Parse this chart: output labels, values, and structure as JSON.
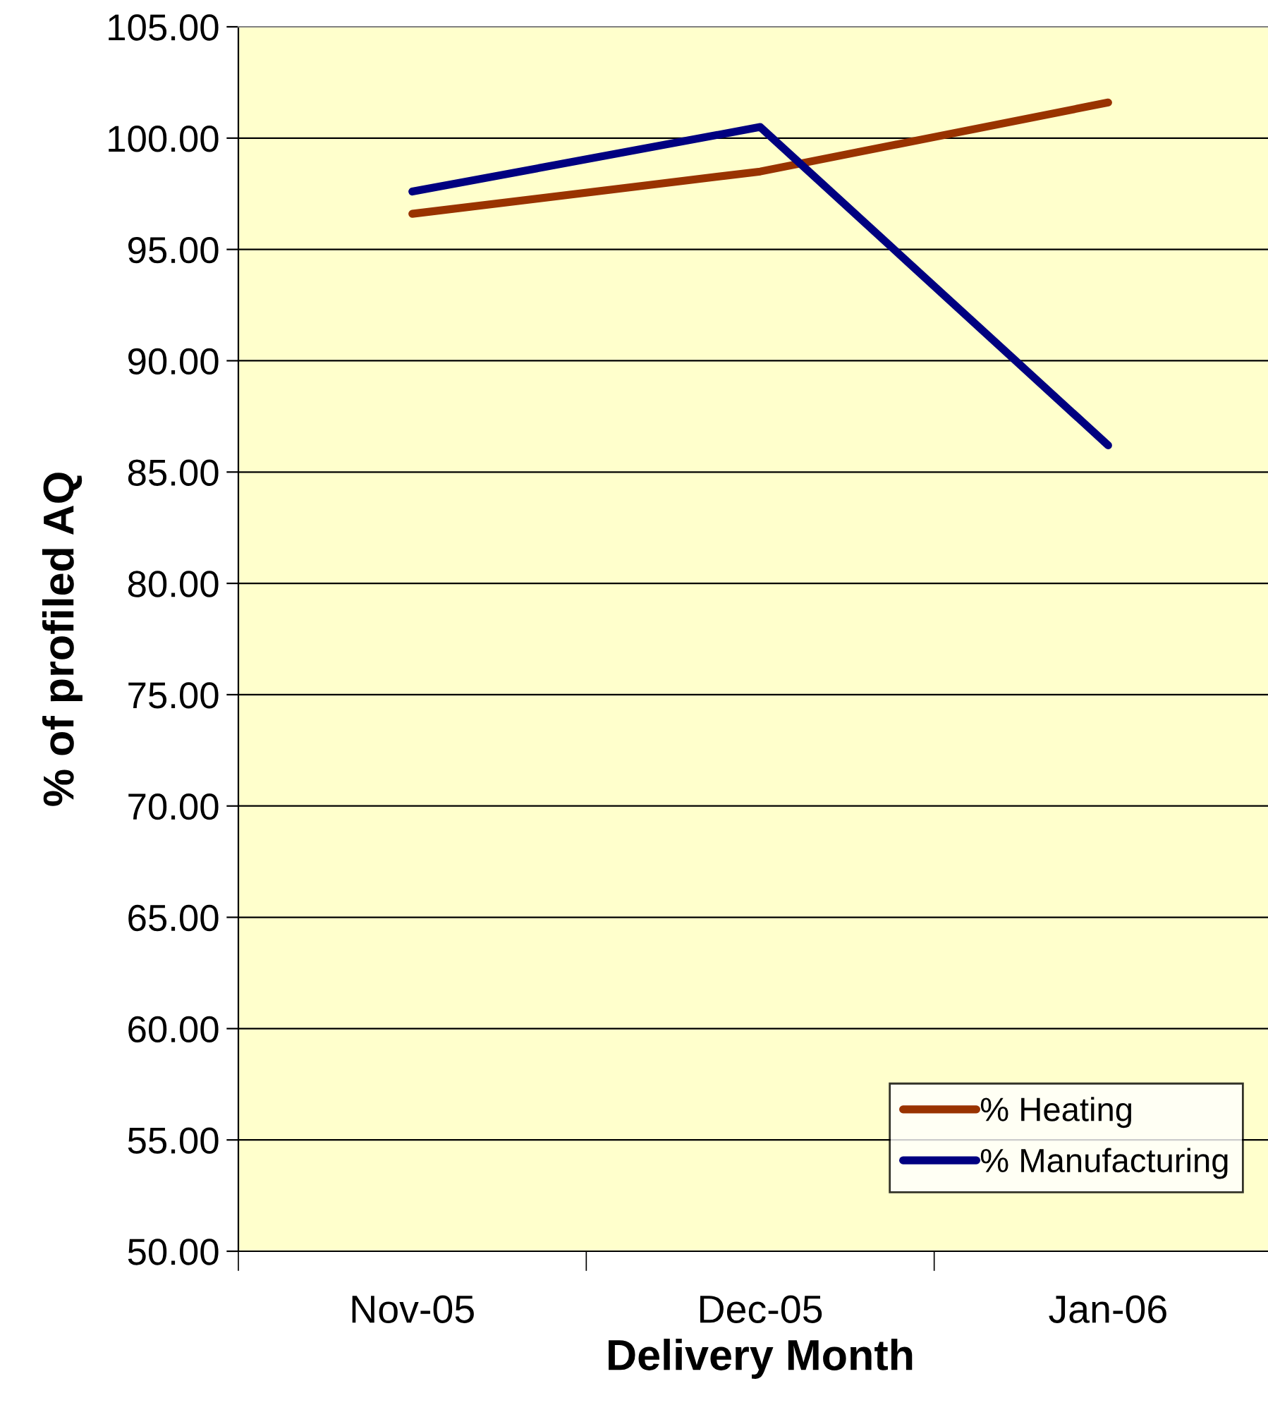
{
  "chart_data": {
    "type": "line",
    "xlabel": "Delivery Month",
    "ylabel": "% of profiled AQ",
    "categories": [
      "Nov-05",
      "Dec-05",
      "Jan-06"
    ],
    "series": [
      {
        "name": "% Heating",
        "color": "#993300",
        "values": [
          96.6,
          98.5,
          101.6
        ]
      },
      {
        "name": "% Manufacturing",
        "color": "#000080",
        "values": [
          97.6,
          100.5,
          86.2
        ]
      }
    ],
    "ylim": [
      50,
      105
    ],
    "yticks": [
      {
        "value": 50,
        "label": "50.00"
      },
      {
        "value": 55,
        "label": "55.00"
      },
      {
        "value": 60,
        "label": "60.00"
      },
      {
        "value": 65,
        "label": "65.00"
      },
      {
        "value": 70,
        "label": "70.00"
      },
      {
        "value": 75,
        "label": "75.00"
      },
      {
        "value": 80,
        "label": "80.00"
      },
      {
        "value": 85,
        "label": "85.00"
      },
      {
        "value": 90,
        "label": "90.00"
      },
      {
        "value": 95,
        "label": "95.00"
      },
      {
        "value": 100,
        "label": "100.00"
      },
      {
        "value": 105,
        "label": "105.00"
      }
    ],
    "grid": "y",
    "legend": "bottom right",
    "marker": "none",
    "line_style": "solid"
  }
}
